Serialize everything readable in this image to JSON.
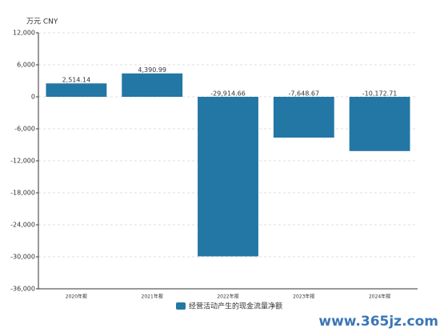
{
  "chart_data": {
    "type": "bar",
    "y_axis_label": "万元  CNY",
    "categories": [
      "2020年报",
      "2021年报",
      "2022年报",
      "2023年报",
      "2024年报"
    ],
    "series": [
      {
        "name": "经营活动产生的现金流量净额",
        "color": "#2277a5",
        "values": [
          2514.14,
          4390.99,
          -29914.66,
          -7648.67,
          -10172.71
        ],
        "value_labels": [
          "2,514.14",
          "4,390.99",
          "-29,914.66",
          "-7,648.67",
          "-10,172.71"
        ]
      }
    ],
    "ylim": [
      -36000,
      12000
    ],
    "yticks": [
      {
        "value": -36000,
        "label": "-36,000"
      },
      {
        "value": -30000,
        "label": "-30,000"
      },
      {
        "value": -24000,
        "label": "-24,000"
      },
      {
        "value": -18000,
        "label": "-18,000"
      },
      {
        "value": -12000,
        "label": "-12,000"
      },
      {
        "value": -6000,
        "label": "-6,000"
      },
      0,
      {
        "value": 6000,
        "label": "6,000"
      },
      {
        "value": 12000,
        "label": "12,000"
      }
    ],
    "grid": true,
    "legend": "bottom",
    "watermark": "www.365jz.com"
  }
}
